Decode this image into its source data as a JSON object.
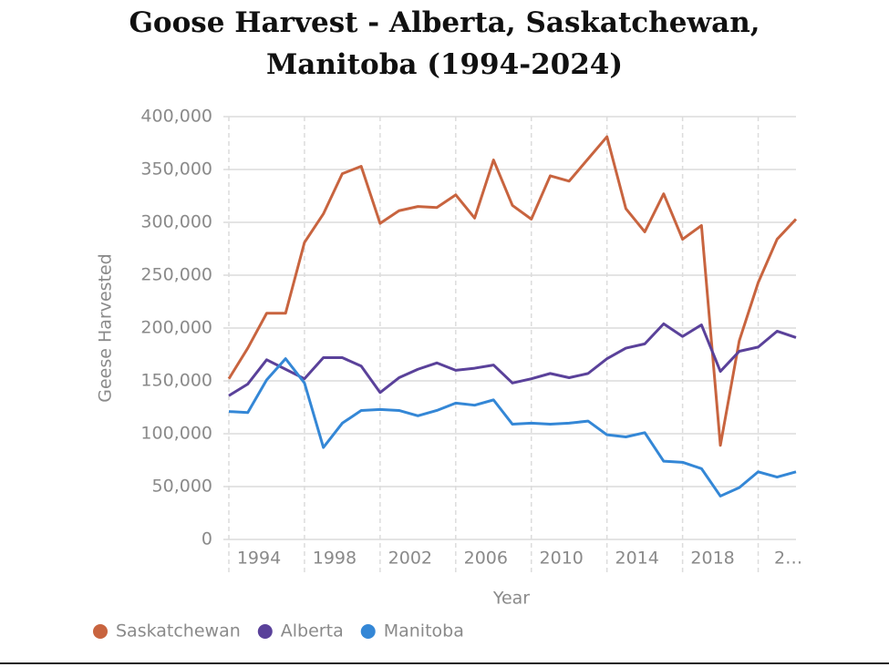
{
  "chart_data": {
    "type": "line",
    "title": "Goose Harvest - Alberta, Saskatchewan, Manitoba (1994-2024)",
    "x_label": "Year",
    "y_label": "Geese Harvested",
    "x": [
      1994,
      1995,
      1996,
      1997,
      1998,
      1999,
      2000,
      2001,
      2002,
      2003,
      2004,
      2005,
      2006,
      2007,
      2008,
      2009,
      2010,
      2011,
      2012,
      2013,
      2014,
      2015,
      2016,
      2017,
      2018,
      2019,
      2020,
      2021,
      2022,
      2023,
      2024
    ],
    "xlim": [
      1994,
      2024
    ],
    "xticks": [
      1994,
      1998,
      2002,
      2006,
      2010,
      2014,
      2018,
      {
        "value": 2022,
        "label": "2…"
      }
    ],
    "ylim": [
      0,
      400000
    ],
    "yticks": [
      0,
      {
        "value": 50000,
        "label": "50,000"
      },
      {
        "value": 100000,
        "label": "100,000"
      },
      {
        "value": 150000,
        "label": "150,000"
      },
      {
        "value": 200000,
        "label": "200,000"
      },
      {
        "value": 250000,
        "label": "250,000"
      },
      {
        "value": 300000,
        "label": "300,000"
      },
      {
        "value": 350000,
        "label": "350,000"
      },
      {
        "value": 400000,
        "label": "400,000"
      }
    ],
    "grid": true,
    "legend": "bottom-left",
    "series": [
      {
        "name": "Saskatchewan",
        "color": "#c8643f",
        "values": [
          152000,
          181000,
          214000,
          214000,
          281000,
          308000,
          346000,
          353000,
          299000,
          311000,
          315000,
          314000,
          326000,
          304000,
          359000,
          316000,
          303000,
          344000,
          339000,
          360000,
          381000,
          313000,
          291000,
          327000,
          284000,
          297000,
          89000,
          188000,
          243000,
          284000,
          303000
        ]
      },
      {
        "name": "Alberta",
        "color": "#5a419a",
        "values": [
          136000,
          147000,
          170000,
          161000,
          152000,
          172000,
          172000,
          164000,
          139000,
          153000,
          161000,
          167000,
          160000,
          162000,
          165000,
          148000,
          152000,
          157000,
          153000,
          157000,
          171000,
          181000,
          185000,
          204000,
          192000,
          203000,
          159000,
          178000,
          182000,
          197000,
          191000
        ]
      },
      {
        "name": "Manitoba",
        "color": "#3487d6",
        "values": [
          121000,
          120000,
          151000,
          171000,
          148000,
          87000,
          110000,
          122000,
          123000,
          122000,
          117000,
          122000,
          129000,
          127000,
          132000,
          109000,
          110000,
          109000,
          110000,
          112000,
          99000,
          97000,
          101000,
          74000,
          73000,
          67000,
          41000,
          49000,
          64000,
          59000,
          64000
        ]
      }
    ]
  }
}
